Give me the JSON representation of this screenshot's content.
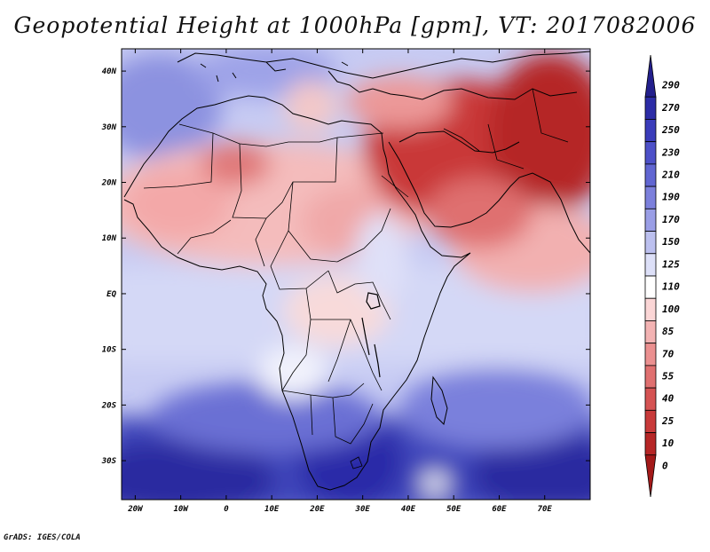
{
  "title": "Geopotential Height at 1000hPa [gpm], VT: 2017082006",
  "credit": "GrADS: IGES/COLA",
  "lat_labels": [
    "40N",
    "30N",
    "20N",
    "10N",
    "EQ",
    "10S",
    "20S",
    "30S"
  ],
  "lat_values": [
    40,
    30,
    20,
    10,
    0,
    -10,
    -20,
    -30
  ],
  "lon_labels": [
    "20W",
    "10W",
    "0",
    "10E",
    "20E",
    "30E",
    "40E",
    "50E",
    "60E",
    "70E"
  ],
  "lon_values": [
    -20,
    -10,
    0,
    10,
    20,
    30,
    40,
    50,
    60,
    70
  ],
  "colorbar": {
    "levels": [
      "290",
      "270",
      "250",
      "230",
      "210",
      "190",
      "170",
      "150",
      "125",
      "110",
      "100",
      "85",
      "70",
      "55",
      "40",
      "25",
      "10",
      "0"
    ],
    "colors": [
      "#231f8c",
      "#2c2ca6",
      "#3a3cba",
      "#4d50c8",
      "#6166d2",
      "#7c80dc",
      "#9a9ee6",
      "#bcc0ef",
      "#dde0f8",
      "#ffffff",
      "#fbd6d6",
      "#f3b3b3",
      "#eb9090",
      "#e07070",
      "#d55353",
      "#c83a3a",
      "#b62626",
      "#a31919"
    ]
  },
  "map": {
    "background": "#c7cbf3",
    "extent": {
      "lon_min": -23,
      "lon_max": 80,
      "lat_min": -37,
      "lat_max": 44
    }
  }
}
